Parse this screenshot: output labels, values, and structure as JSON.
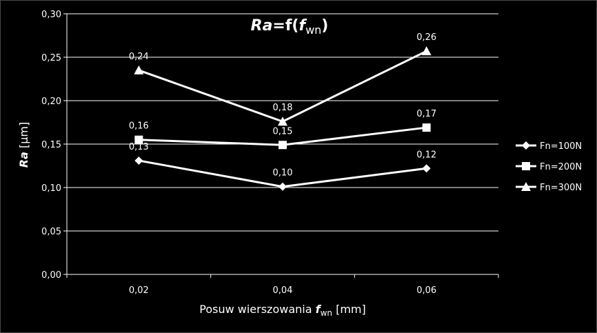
{
  "chart_data": {
    "type": "line",
    "title": {
      "main": "Ra",
      "eq": "=f(",
      "var": "f",
      "sub": "wn",
      "close": ")"
    },
    "xlabel": {
      "text": "Posuw wierszowania ",
      "var": "f",
      "sub": "wn",
      "unit": " [mm]"
    },
    "ylabel": {
      "var": "Ra",
      "unit": " [µm]"
    },
    "categories": [
      "0,02",
      "0,04",
      "0,06"
    ],
    "ylim": [
      0,
      0.3
    ],
    "yticks": [
      "0,00",
      "0,05",
      "0,10",
      "0,15",
      "0,20",
      "0,25",
      "0,30"
    ],
    "grid": true,
    "legend_position": "right",
    "series": [
      {
        "name": "Fn=100N",
        "marker": "diamond",
        "values": [
          0.131,
          0.101,
          0.122
        ],
        "labels": [
          "0,13",
          "0,10",
          "0,12"
        ]
      },
      {
        "name": "Fn=200N",
        "marker": "square",
        "values": [
          0.155,
          0.149,
          0.169
        ],
        "labels": [
          "0,16",
          "0,15",
          "0,17"
        ]
      },
      {
        "name": "Fn=300N",
        "marker": "triangle",
        "values": [
          0.235,
          0.176,
          0.257
        ],
        "labels": [
          "0,24",
          "0,18",
          "0,26"
        ]
      }
    ],
    "colors": {
      "background": "#000000",
      "line": "#ffffff",
      "grid": "#ffffff"
    }
  }
}
